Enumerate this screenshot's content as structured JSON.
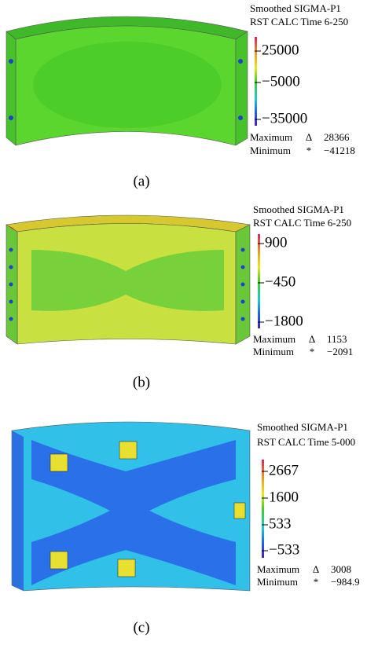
{
  "panels": [
    {
      "title": [
        "Smoothed SIGMA-P1",
        "RST CALC Time 6-250"
      ],
      "scale": [
        "25000",
        "−5000",
        "−35000"
      ],
      "maximum": {
        "label": "Maximum",
        "symbol": "Δ",
        "value": "28366"
      },
      "minimum": {
        "label": "Minimum",
        "symbol": "*",
        "value": "−41218"
      },
      "caption": "(a)"
    },
    {
      "title": [
        "Smoothed SIGMA-P1",
        "RST CALC Time 6-250"
      ],
      "scale": [
        "900",
        "−450",
        "−1800"
      ],
      "maximum": {
        "label": "Maximum",
        "symbol": "Δ",
        "value": "1153"
      },
      "minimum": {
        "label": "Minimum",
        "symbol": "*",
        "value": "−2091"
      },
      "caption": "(b)"
    },
    {
      "title": [
        "Smoothed SIGMA-P1",
        "RST CALC Time 5-000"
      ],
      "scale": [
        "2667",
        "1600",
        "533",
        "−533"
      ],
      "maximum": {
        "label": "Maximum",
        "symbol": "Δ",
        "value": "3008"
      },
      "minimum": {
        "label": "Minimum",
        "symbol": "*",
        "value": "−984.9"
      },
      "caption": "(c)"
    }
  ]
}
